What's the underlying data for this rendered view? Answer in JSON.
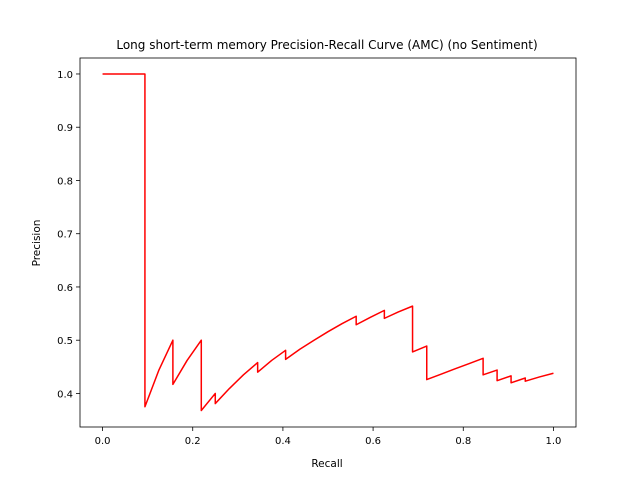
{
  "chart_data": {
    "type": "line",
    "title": "Long short-term memory Precision-Recall Curve (AMC) (no Sentiment)",
    "xlabel": "Recall",
    "ylabel": "Precision",
    "xlim": [
      -0.05,
      1.05
    ],
    "ylim": [
      0.337,
      1.03
    ],
    "grid": false,
    "xticks": [
      0.0,
      0.2,
      0.4,
      0.6,
      0.8,
      1.0
    ],
    "xtick_labels": [
      "0.0",
      "0.2",
      "0.4",
      "0.6",
      "0.8",
      "1.0"
    ],
    "yticks": [
      0.4,
      0.5,
      0.6,
      0.7,
      0.8,
      0.9,
      1.0
    ],
    "ytick_labels": [
      "0.4",
      "0.5",
      "0.6",
      "0.7",
      "0.8",
      "0.9",
      "1.0"
    ],
    "series": [
      {
        "color": "#ff0000",
        "x": [
          0.0,
          0.094,
          0.094,
          0.125,
          0.156,
          0.156,
          0.1875,
          0.219,
          0.219,
          0.25,
          0.25,
          0.281,
          0.3125,
          0.344,
          0.344,
          0.375,
          0.406,
          0.406,
          0.4375,
          0.469,
          0.5,
          0.531,
          0.5625,
          0.5625,
          0.594,
          0.625,
          0.625,
          0.656,
          0.6875,
          0.6875,
          0.719,
          0.719,
          0.75,
          0.781,
          0.8125,
          0.844,
          0.844,
          0.875,
          0.875,
          0.906,
          0.906,
          0.9375,
          0.9375,
          0.969,
          1.0
        ],
        "y": [
          1.0,
          1.0,
          0.375,
          0.444,
          0.5,
          0.417,
          0.462,
          0.5,
          0.368,
          0.4,
          0.381,
          0.409,
          0.435,
          0.458,
          0.44,
          0.462,
          0.481,
          0.464,
          0.483,
          0.5,
          0.516,
          0.531,
          0.545,
          0.529,
          0.543,
          0.556,
          0.541,
          0.553,
          0.564,
          0.478,
          0.489,
          0.426,
          0.436,
          0.446,
          0.456,
          0.466,
          0.435,
          0.444,
          0.424,
          0.433,
          0.42,
          0.429,
          0.423,
          0.431,
          0.438
        ]
      }
    ]
  }
}
